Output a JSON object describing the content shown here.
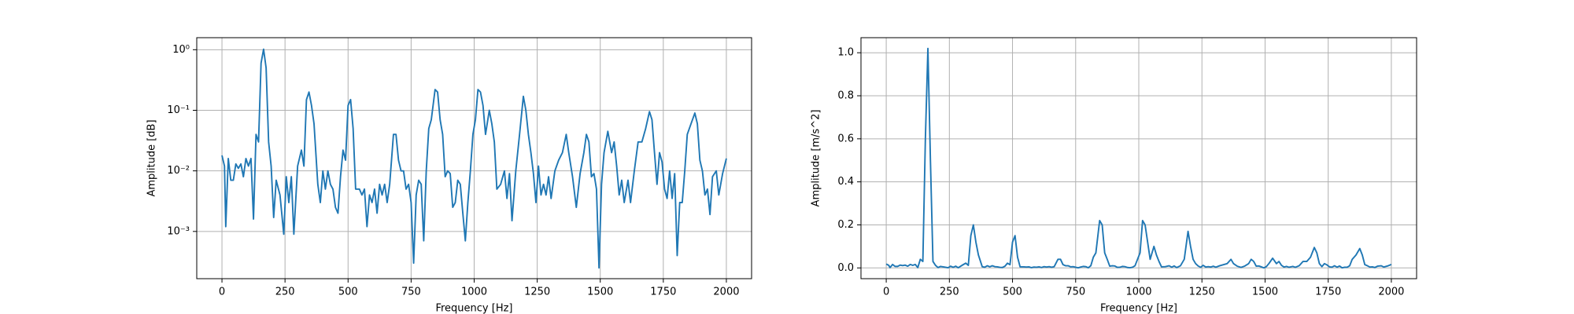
{
  "chart_data": [
    {
      "type": "line",
      "xlabel": "Frequency [Hz]",
      "ylabel": "Amplitude [dB]",
      "log_y": true,
      "grid": true,
      "xlim": [
        -100,
        2100
      ],
      "ylim": [
        0.000166,
        1.58
      ],
      "xticks": [
        0,
        250,
        500,
        750,
        1000,
        1250,
        1500,
        1750,
        2000
      ],
      "yticks": [
        {
          "value": 0.001,
          "label": "10⁻³"
        },
        {
          "value": 0.01,
          "label": "10⁻²"
        },
        {
          "value": 0.1,
          "label": "10⁻¹"
        },
        {
          "value": 1,
          "label": "10⁰"
        }
      ],
      "x": [
        0,
        10,
        15,
        25,
        35,
        45,
        55,
        65,
        75,
        85,
        95,
        105,
        115,
        125,
        135,
        145,
        155,
        165,
        175,
        185,
        195,
        205,
        215,
        230,
        245,
        255,
        265,
        275,
        285,
        300,
        315,
        325,
        335,
        345,
        355,
        365,
        380,
        390,
        400,
        410,
        420,
        430,
        440,
        450,
        460,
        470,
        480,
        490,
        500,
        510,
        520,
        530,
        545,
        555,
        565,
        575,
        585,
        595,
        605,
        615,
        625,
        635,
        645,
        655,
        665,
        680,
        690,
        700,
        710,
        720,
        730,
        740,
        750,
        760,
        770,
        780,
        790,
        800,
        810,
        820,
        830,
        845,
        855,
        865,
        875,
        885,
        895,
        905,
        915,
        925,
        935,
        945,
        955,
        965,
        975,
        985,
        995,
        1005,
        1015,
        1025,
        1035,
        1045,
        1060,
        1070,
        1080,
        1090,
        1105,
        1120,
        1130,
        1140,
        1150,
        1165,
        1180,
        1195,
        1205,
        1215,
        1225,
        1235,
        1245,
        1255,
        1265,
        1275,
        1285,
        1295,
        1305,
        1320,
        1335,
        1350,
        1365,
        1375,
        1390,
        1405,
        1420,
        1435,
        1445,
        1455,
        1465,
        1475,
        1485,
        1495,
        1505,
        1515,
        1530,
        1545,
        1555,
        1565,
        1575,
        1585,
        1595,
        1610,
        1620,
        1635,
        1650,
        1665,
        1680,
        1695,
        1705,
        1715,
        1725,
        1735,
        1745,
        1755,
        1765,
        1775,
        1785,
        1795,
        1805,
        1815,
        1825,
        1835,
        1845,
        1860,
        1875,
        1885,
        1895,
        1905,
        1915,
        1925,
        1935,
        1945,
        1960,
        1970,
        1985,
        2000
      ],
      "series": [
        {
          "color": "#1f77b4",
          "values": [
            0.018,
            0.012,
            0.0012,
            0.016,
            0.007,
            0.007,
            0.013,
            0.011,
            0.013,
            0.008,
            0.016,
            0.012,
            0.016,
            0.0016,
            0.04,
            0.03,
            0.6,
            1.02,
            0.5,
            0.03,
            0.012,
            0.0017,
            0.007,
            0.004,
            0.0009,
            0.008,
            0.003,
            0.008,
            0.0009,
            0.012,
            0.022,
            0.012,
            0.15,
            0.2,
            0.12,
            0.06,
            0.006,
            0.003,
            0.01,
            0.005,
            0.01,
            0.006,
            0.005,
            0.0025,
            0.002,
            0.008,
            0.022,
            0.015,
            0.12,
            0.15,
            0.05,
            0.005,
            0.005,
            0.004,
            0.005,
            0.0012,
            0.004,
            0.003,
            0.005,
            0.002,
            0.006,
            0.004,
            0.006,
            0.003,
            0.006,
            0.04,
            0.04,
            0.015,
            0.01,
            0.01,
            0.005,
            0.006,
            0.003,
            0.0003,
            0.004,
            0.007,
            0.006,
            0.0007,
            0.01,
            0.05,
            0.07,
            0.22,
            0.2,
            0.07,
            0.04,
            0.008,
            0.01,
            0.009,
            0.0025,
            0.003,
            0.007,
            0.006,
            0.002,
            0.0007,
            0.003,
            0.01,
            0.04,
            0.07,
            0.22,
            0.2,
            0.12,
            0.04,
            0.1,
            0.06,
            0.03,
            0.005,
            0.006,
            0.01,
            0.0035,
            0.009,
            0.0015,
            0.01,
            0.04,
            0.17,
            0.1,
            0.04,
            0.02,
            0.009,
            0.003,
            0.012,
            0.004,
            0.006,
            0.004,
            0.008,
            0.0035,
            0.01,
            0.015,
            0.02,
            0.04,
            0.02,
            0.008,
            0.0025,
            0.009,
            0.02,
            0.04,
            0.03,
            0.008,
            0.009,
            0.005,
            0.00025,
            0.006,
            0.02,
            0.045,
            0.02,
            0.03,
            0.012,
            0.004,
            0.007,
            0.003,
            0.007,
            0.003,
            0.01,
            0.03,
            0.03,
            0.05,
            0.095,
            0.07,
            0.02,
            0.006,
            0.02,
            0.014,
            0.005,
            0.0035,
            0.01,
            0.0035,
            0.009,
            0.0004,
            0.003,
            0.003,
            0.01,
            0.04,
            0.06,
            0.09,
            0.06,
            0.015,
            0.01,
            0.004,
            0.005,
            0.0019,
            0.008,
            0.01,
            0.004,
            0.009,
            0.016
          ]
        }
      ]
    },
    {
      "type": "line",
      "xlabel": "Frequency [Hz]",
      "ylabel": "Amplitude [m/s^2]",
      "log_y": false,
      "grid": true,
      "xlim": [
        -100,
        2100
      ],
      "ylim": [
        -0.05,
        1.07
      ],
      "xticks": [
        0,
        250,
        500,
        750,
        1000,
        1250,
        1500,
        1750,
        2000
      ],
      "yticks": [
        {
          "value": 0,
          "label": "0.0"
        },
        0.2,
        0.4,
        0.6,
        0.8,
        {
          "value": 1,
          "label": "1.0"
        }
      ],
      "x": [
        0,
        10,
        15,
        25,
        35,
        45,
        55,
        65,
        75,
        85,
        95,
        105,
        115,
        125,
        135,
        145,
        155,
        165,
        175,
        185,
        195,
        205,
        215,
        230,
        245,
        255,
        265,
        275,
        285,
        300,
        315,
        325,
        335,
        345,
        355,
        365,
        380,
        390,
        400,
        410,
        420,
        430,
        440,
        450,
        460,
        470,
        480,
        490,
        500,
        510,
        520,
        530,
        545,
        555,
        565,
        575,
        585,
        595,
        605,
        615,
        625,
        635,
        645,
        655,
        665,
        680,
        690,
        700,
        710,
        720,
        730,
        740,
        750,
        760,
        770,
        780,
        790,
        800,
        810,
        820,
        830,
        845,
        855,
        865,
        875,
        885,
        895,
        905,
        915,
        925,
        935,
        945,
        955,
        965,
        975,
        985,
        995,
        1005,
        1015,
        1025,
        1035,
        1045,
        1060,
        1070,
        1080,
        1090,
        1105,
        1120,
        1130,
        1140,
        1150,
        1165,
        1180,
        1195,
        1205,
        1215,
        1225,
        1235,
        1245,
        1255,
        1265,
        1275,
        1285,
        1295,
        1305,
        1320,
        1335,
        1350,
        1365,
        1375,
        1390,
        1405,
        1420,
        1435,
        1445,
        1455,
        1465,
        1475,
        1485,
        1495,
        1505,
        1515,
        1530,
        1545,
        1555,
        1565,
        1575,
        1585,
        1595,
        1610,
        1620,
        1635,
        1650,
        1665,
        1680,
        1695,
        1705,
        1715,
        1725,
        1735,
        1745,
        1755,
        1765,
        1775,
        1785,
        1795,
        1805,
        1815,
        1825,
        1835,
        1845,
        1860,
        1875,
        1885,
        1895,
        1905,
        1915,
        1925,
        1935,
        1945,
        1960,
        1970,
        1985,
        2000
      ],
      "series": [
        {
          "color": "#1f77b4",
          "values": [
            0.018,
            0.012,
            0.0012,
            0.016,
            0.007,
            0.007,
            0.013,
            0.011,
            0.013,
            0.008,
            0.016,
            0.012,
            0.016,
            0.0016,
            0.04,
            0.03,
            0.6,
            1.02,
            0.5,
            0.03,
            0.012,
            0.0017,
            0.007,
            0.004,
            0.0009,
            0.008,
            0.003,
            0.008,
            0.0009,
            0.012,
            0.022,
            0.012,
            0.15,
            0.2,
            0.12,
            0.06,
            0.006,
            0.003,
            0.01,
            0.005,
            0.01,
            0.006,
            0.005,
            0.0025,
            0.002,
            0.008,
            0.022,
            0.015,
            0.12,
            0.15,
            0.05,
            0.005,
            0.005,
            0.004,
            0.005,
            0.0012,
            0.004,
            0.003,
            0.005,
            0.002,
            0.006,
            0.004,
            0.006,
            0.003,
            0.006,
            0.04,
            0.04,
            0.015,
            0.01,
            0.01,
            0.005,
            0.006,
            0.003,
            0.0003,
            0.004,
            0.007,
            0.006,
            0.0007,
            0.01,
            0.05,
            0.07,
            0.22,
            0.2,
            0.07,
            0.04,
            0.008,
            0.01,
            0.009,
            0.0025,
            0.003,
            0.007,
            0.006,
            0.002,
            0.0007,
            0.003,
            0.01,
            0.04,
            0.07,
            0.22,
            0.2,
            0.12,
            0.04,
            0.1,
            0.06,
            0.03,
            0.005,
            0.006,
            0.01,
            0.0035,
            0.009,
            0.0015,
            0.01,
            0.04,
            0.17,
            0.1,
            0.04,
            0.02,
            0.009,
            0.003,
            0.012,
            0.004,
            0.006,
            0.004,
            0.008,
            0.0035,
            0.01,
            0.015,
            0.02,
            0.04,
            0.02,
            0.008,
            0.0025,
            0.009,
            0.02,
            0.04,
            0.03,
            0.008,
            0.009,
            0.005,
            0.00025,
            0.006,
            0.02,
            0.045,
            0.02,
            0.03,
            0.012,
            0.004,
            0.007,
            0.003,
            0.007,
            0.003,
            0.01,
            0.03,
            0.03,
            0.05,
            0.095,
            0.07,
            0.02,
            0.006,
            0.02,
            0.014,
            0.005,
            0.0035,
            0.01,
            0.0035,
            0.009,
            0.0004,
            0.003,
            0.003,
            0.01,
            0.04,
            0.06,
            0.09,
            0.06,
            0.015,
            0.01,
            0.004,
            0.005,
            0.0019,
            0.008,
            0.01,
            0.004,
            0.009,
            0.016
          ]
        }
      ]
    }
  ]
}
